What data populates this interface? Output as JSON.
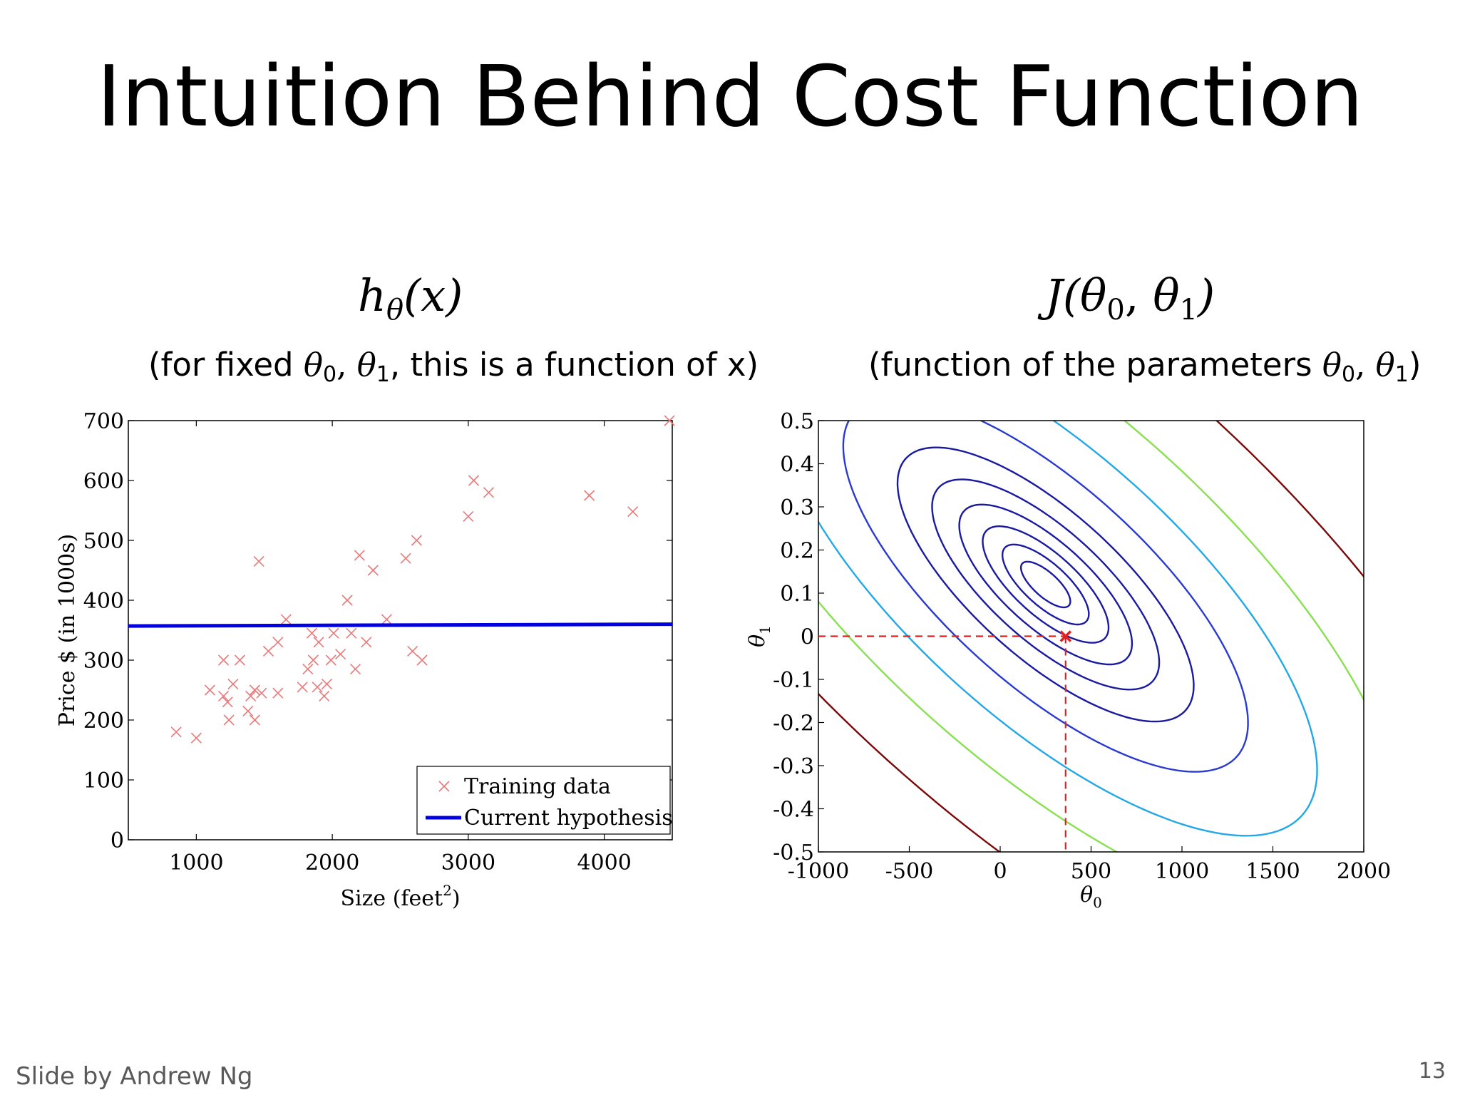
{
  "slide": {
    "title": "Intuition Behind Cost Function",
    "credit": "Slide by Andrew Ng",
    "page_number": "13"
  },
  "left_panel": {
    "heading": {
      "h": "h",
      "sub": "θ",
      "rest": "(x)"
    },
    "caption": {
      "pre": "(for fixed ",
      "m0": "θ",
      "s0": "0",
      "comma": ", ",
      "m1": "θ",
      "s1": "1",
      "post": ", this is a function of x)"
    }
  },
  "right_panel": {
    "heading": {
      "pre": "J(",
      "m0": "θ",
      "s0": "0",
      "comma": ", ",
      "m1": "θ",
      "s1": "1",
      "post": ")"
    },
    "caption": {
      "pre": "(function of the parameters ",
      "m0": "θ",
      "s0": "0",
      "comma": ", ",
      "m1": "θ",
      "s1": "1",
      "post": ")"
    }
  },
  "chart_data": [
    {
      "type": "scatter",
      "xlabel": "Size (feet",
      "xlabel_sup": "2",
      "xlabel_close": ")",
      "ylabel": "Price $ (in 1000s)",
      "xlim": [
        500,
        4500
      ],
      "ylim": [
        0,
        700
      ],
      "xticks": [
        1000,
        2000,
        3000,
        4000
      ],
      "yticks": [
        0,
        100,
        200,
        300,
        400,
        500,
        600,
        700
      ],
      "legend_position": "bottom-right",
      "series": [
        {
          "name": "Training data",
          "kind": "scatter",
          "color": "#e87a7a",
          "points": [
            [
              852,
              180
            ],
            [
              1000,
              170
            ],
            [
              1100,
              250
            ],
            [
              1200,
              300
            ],
            [
              1200,
              240
            ],
            [
              1230,
              230
            ],
            [
              1240,
              200
            ],
            [
              1270,
              260
            ],
            [
              1320,
              300
            ],
            [
              1380,
              215
            ],
            [
              1400,
              240
            ],
            [
              1430,
              200
            ],
            [
              1430,
              250
            ],
            [
              1460,
              465
            ],
            [
              1480,
              245
            ],
            [
              1530,
              315
            ],
            [
              1600,
              245
            ],
            [
              1600,
              330
            ],
            [
              1660,
              368
            ],
            [
              1780,
              255
            ],
            [
              1820,
              285
            ],
            [
              1850,
              345
            ],
            [
              1860,
              300
            ],
            [
              1890,
              255
            ],
            [
              1900,
              330
            ],
            [
              1940,
              240
            ],
            [
              1960,
              260
            ],
            [
              1990,
              300
            ],
            [
              2010,
              345
            ],
            [
              2060,
              310
            ],
            [
              2110,
              400
            ],
            [
              2140,
              345
            ],
            [
              2170,
              285
            ],
            [
              2200,
              475
            ],
            [
              2250,
              330
            ],
            [
              2300,
              450
            ],
            [
              2400,
              368
            ],
            [
              2540,
              470
            ],
            [
              2590,
              315
            ],
            [
              2620,
              500
            ],
            [
              2660,
              300
            ],
            [
              3000,
              540
            ],
            [
              3040,
              600
            ],
            [
              3150,
              580
            ],
            [
              3890,
              575
            ],
            [
              4210,
              548
            ],
            [
              4480,
              700
            ]
          ]
        },
        {
          "name": "Current hypothesis",
          "kind": "line",
          "color": "#0000e0",
          "points": [
            [
              500,
              357
            ],
            [
              4500,
              360
            ]
          ]
        }
      ]
    },
    {
      "type": "contour",
      "xlabel": "θ",
      "xlabel_sub": "0",
      "ylabel": "θ",
      "ylabel_sub": "1",
      "xlim": [
        -1000,
        2000
      ],
      "ylim": [
        -0.5,
        0.5
      ],
      "xticks": [
        -1000,
        -500,
        0,
        500,
        1000,
        1500,
        2000
      ],
      "xtick_labels": [
        "-1000",
        "-500",
        "0",
        "500",
        "1000",
        "1500",
        "2000"
      ],
      "yticks": [
        -0.5,
        -0.4,
        -0.3,
        -0.2,
        -0.1,
        0,
        0.1,
        0.2,
        0.3,
        0.4,
        0.5
      ],
      "ytick_labels": [
        "-0.5",
        "-0.4",
        "-0.3",
        "-0.2",
        "-0.1",
        "0",
        "0.1",
        "0.2",
        "0.3",
        "0.4",
        "0.5"
      ],
      "marker": {
        "theta0": 360,
        "theta1": 0,
        "color": "#e02020"
      },
      "contour_levels": [
        {
          "level": 1,
          "color": "#1a1aa0"
        },
        {
          "level": 2,
          "color": "#1a1aa0"
        },
        {
          "level": 3,
          "color": "#1a1aa0"
        },
        {
          "level": 4,
          "color": "#1a1aa0"
        },
        {
          "level": 5,
          "color": "#1a1aa0"
        },
        {
          "level": 6,
          "color": "#1a1aa0"
        },
        {
          "level": 7,
          "color": "#2a3ad0"
        },
        {
          "level": 8,
          "color": "#22a8e8"
        },
        {
          "level": 9,
          "color": "#88e050"
        },
        {
          "level": 10,
          "color": "#7a0a0a"
        }
      ]
    }
  ]
}
